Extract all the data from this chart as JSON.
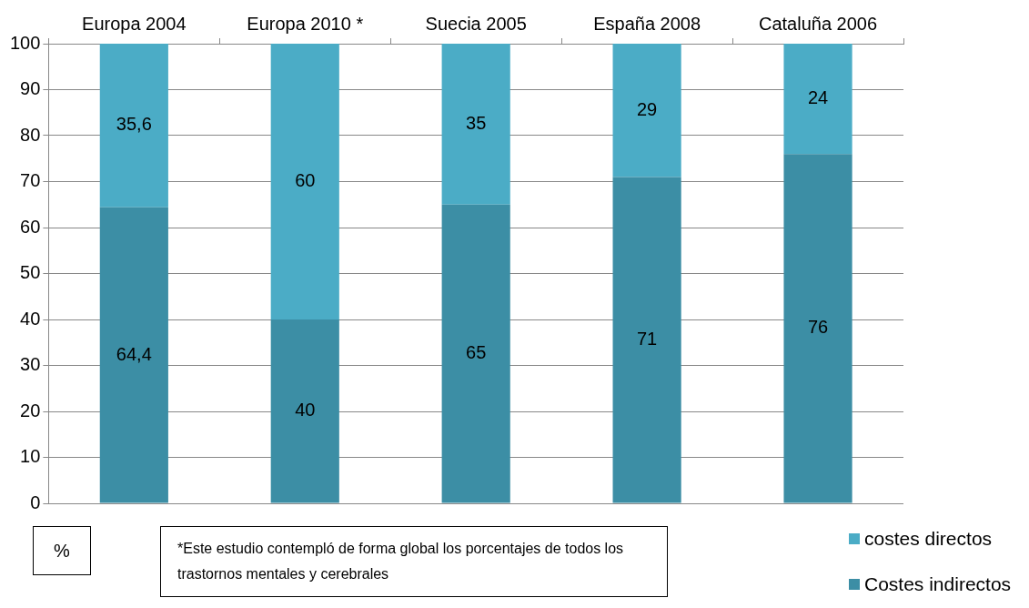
{
  "chart_data": {
    "type": "bar",
    "stacked": true,
    "categories": [
      "Europa 2004",
      "Europa 2010 *",
      "Suecia 2005",
      "España 2008",
      "Cataluña 2006"
    ],
    "series": [
      {
        "name": "Costes indirectos",
        "color": "#3c8ea5",
        "values": [
          64.4,
          40,
          65,
          71,
          76
        ],
        "value_labels": [
          "64,4",
          "40",
          "65",
          "71",
          "76"
        ]
      },
      {
        "name": "costes directos",
        "color": "#4bacc6",
        "values": [
          35.6,
          60,
          35,
          29,
          24
        ],
        "value_labels": [
          "35,6",
          "60",
          "35",
          "29",
          "24"
        ]
      }
    ],
    "ylim": [
      0,
      100
    ],
    "yticks": [
      0,
      10,
      20,
      30,
      40,
      50,
      60,
      70,
      80,
      90,
      100
    ],
    "grid": "y",
    "legend": "bottom right",
    "annotations": [
      "%",
      "*Este estudio contempló de forma global los porcentajes de todos los trastornos mentales y cerebrales"
    ]
  }
}
